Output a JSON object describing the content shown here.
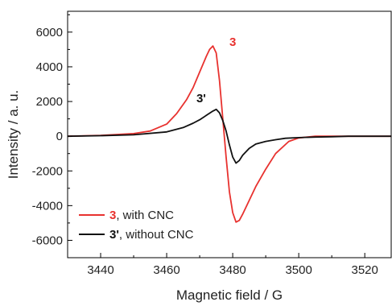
{
  "chart_data": {
    "type": "line",
    "xlabel": "Magnetic field / G",
    "ylabel": "Intensity / a. u.",
    "xlim": [
      3430,
      3528
    ],
    "ylim": [
      -7000,
      7200
    ],
    "x_ticks": [
      3440,
      3460,
      3480,
      3500,
      3520
    ],
    "y_ticks": [
      -6000,
      -4000,
      -2000,
      0,
      2000,
      4000,
      6000
    ],
    "x_tick_labels": [
      "3440",
      "3460",
      "3480",
      "3500",
      "3520"
    ],
    "y_tick_labels": [
      "-6000",
      "-4000",
      "-2000",
      "0",
      "2000",
      "4000",
      "6000"
    ],
    "grid": false,
    "legend_position": "bottom-left",
    "series": [
      {
        "id": "s3",
        "legend_bold": "3",
        "legend_rest": ", with CNC",
        "annotation": "3",
        "color": "#e8322f",
        "x": [
          3430,
          3440,
          3450,
          3455,
          3460,
          3463,
          3466,
          3468,
          3470,
          3472,
          3473,
          3474,
          3475,
          3476,
          3477,
          3478,
          3479,
          3480,
          3481,
          3482,
          3483,
          3485,
          3487,
          3490,
          3493,
          3497,
          3500,
          3505,
          3510,
          3515,
          3520,
          3528
        ],
        "y": [
          0,
          50,
          150,
          300,
          700,
          1300,
          2100,
          2800,
          3700,
          4600,
          5000,
          5200,
          4800,
          3200,
          1000,
          -1200,
          -3200,
          -4400,
          -4950,
          -4850,
          -4500,
          -3700,
          -2900,
          -1900,
          -1000,
          -300,
          -100,
          0,
          0,
          0,
          0,
          0
        ]
      },
      {
        "id": "s3p",
        "legend_bold": "3'",
        "legend_rest": ", without CNC",
        "annotation": "3'",
        "color": "#111111",
        "x": [
          3430,
          3440,
          3450,
          3460,
          3465,
          3468,
          3470,
          3472,
          3474,
          3475,
          3476,
          3477,
          3478,
          3479,
          3480,
          3481,
          3482,
          3483,
          3485,
          3487,
          3490,
          3493,
          3496,
          3500,
          3505,
          3510,
          3515,
          3520,
          3528
        ],
        "y": [
          0,
          30,
          80,
          250,
          500,
          750,
          950,
          1200,
          1450,
          1550,
          1350,
          900,
          300,
          -500,
          -1200,
          -1550,
          -1400,
          -1100,
          -700,
          -450,
          -300,
          -200,
          -120,
          -80,
          -50,
          -30,
          0,
          0,
          0
        ]
      }
    ],
    "annotations": [
      {
        "series": "s3",
        "x": 3479,
        "y": 5200
      },
      {
        "series": "s3p",
        "x": 3469,
        "y": 1950
      }
    ]
  }
}
